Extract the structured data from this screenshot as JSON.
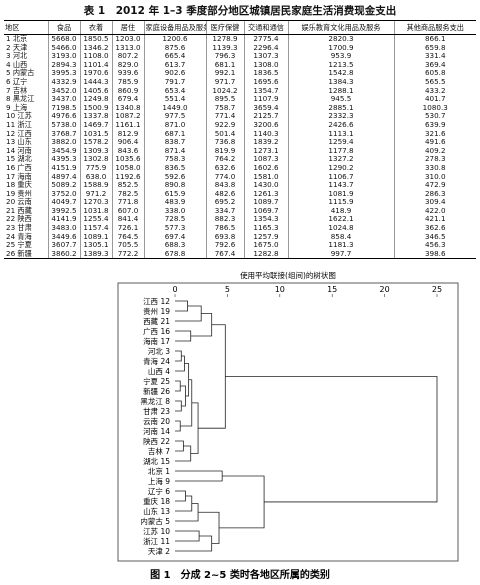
{
  "table": {
    "title": "表 1　2012 年 1–3 季度部分地区城镇居民家庭生活消费现金支出",
    "columns": [
      "地区",
      "食品",
      "衣着",
      "居住",
      "家庭设备用品及服务",
      "医疗保健",
      "交通和通信",
      "娱乐教育文化用品及服务",
      "其他商品服务支出"
    ],
    "rows": [
      [
        "1 北京",
        "5668.0",
        "1850.5",
        "1203.0",
        "1200.6",
        "1278.9",
        "2775.4",
        "2820.3",
        "866.1"
      ],
      [
        "2 天津",
        "5466.0",
        "1346.2",
        "1313.0",
        "875.6",
        "1139.3",
        "2296.4",
        "1700.9",
        "659.8"
      ],
      [
        "3 河北",
        "3193.0",
        "1108.0",
        "807.2",
        "665.4",
        "796.3",
        "1307.3",
        "953.9",
        "331.4"
      ],
      [
        "4 山西",
        "2894.3",
        "1101.4",
        "829.0",
        "613.7",
        "681.1",
        "1308.0",
        "1213.5",
        "369.4"
      ],
      [
        "5 内蒙古",
        "3995.3",
        "1970.6",
        "939.6",
        "902.6",
        "992.1",
        "1836.5",
        "1542.8",
        "605.8"
      ],
      [
        "6 辽宁",
        "4332.9",
        "1444.3",
        "785.9",
        "791.7",
        "971.7",
        "1695.6",
        "1384.3",
        "565.5"
      ],
      [
        "7 吉林",
        "3452.0",
        "1405.6",
        "860.9",
        "653.4",
        "1024.2",
        "1354.7",
        "1288.1",
        "433.2"
      ],
      [
        "8 黑龙江",
        "3437.0",
        "1249.8",
        "679.4",
        "551.4",
        "895.5",
        "1107.9",
        "945.5",
        "401.7"
      ],
      [
        "9 上海",
        "7198.5",
        "1500.9",
        "1340.8",
        "1449.0",
        "758.7",
        "3659.4",
        "2885.1",
        "1080.3"
      ],
      [
        "10 江苏",
        "4976.6",
        "1337.8",
        "1087.2",
        "977.5",
        "771.4",
        "2125.7",
        "2332.3",
        "530.7"
      ],
      [
        "11 浙江",
        "5738.0",
        "1469.7",
        "1161.1",
        "871.0",
        "922.9",
        "3200.6",
        "2426.6",
        "639.9"
      ],
      [
        "12 江西",
        "3768.7",
        "1031.5",
        "812.9",
        "687.1",
        "501.4",
        "1140.3",
        "1113.1",
        "321.6"
      ],
      [
        "13 山东",
        "3882.0",
        "1578.2",
        "906.4",
        "838.7",
        "736.8",
        "1839.2",
        "1259.4",
        "491.6"
      ],
      [
        "14 河南",
        "3454.9",
        "1309.3",
        "843.6",
        "871.4",
        "819.9",
        "1273.1",
        "1177.8",
        "409.2"
      ],
      [
        "15 湖北",
        "4395.3",
        "1302.8",
        "1035.6",
        "758.3",
        "764.2",
        "1087.3",
        "1327.2",
        "278.3"
      ],
      [
        "16 广西",
        "4151.9",
        "775.9",
        "1058.0",
        "836.5",
        "632.6",
        "1602.6",
        "1290.2",
        "330.8"
      ],
      [
        "17 海南",
        "4897.4",
        "638.0",
        "1192.6",
        "592.6",
        "774.0",
        "1581.0",
        "1106.7",
        "310.0"
      ],
      [
        "18 重庆",
        "5089.2",
        "1588.9",
        "852.5",
        "890.8",
        "843.8",
        "1430.0",
        "1143.7",
        "472.9"
      ],
      [
        "19 贵州",
        "3752.0",
        "971.2",
        "782.5",
        "615.9",
        "482.6",
        "1261.3",
        "1081.9",
        "286.3"
      ],
      [
        "20 云南",
        "4049.7",
        "1270.3",
        "771.8",
        "483.9",
        "695.2",
        "1089.7",
        "1115.9",
        "309.4"
      ],
      [
        "21 西藏",
        "3992.5",
        "1031.8",
        "607.0",
        "338.0",
        "334.7",
        "1069.7",
        "418.9",
        "422.0"
      ],
      [
        "22 陕西",
        "4141.9",
        "1255.4",
        "841.4",
        "728.5",
        "882.3",
        "1354.3",
        "1622.1",
        "421.1"
      ],
      [
        "23 甘肃",
        "3483.0",
        "1157.4",
        "726.1",
        "577.3",
        "786.5",
        "1165.3",
        "1024.8",
        "362.6"
      ],
      [
        "24 青海",
        "3449.6",
        "1089.1",
        "764.5",
        "697.4",
        "693.8",
        "1257.9",
        "858.4",
        "346.5"
      ],
      [
        "25 宁夏",
        "3607.7",
        "1305.1",
        "705.5",
        "688.3",
        "792.6",
        "1675.0",
        "1181.3",
        "456.3"
      ],
      [
        "26 新疆",
        "3860.2",
        "1389.3",
        "772.2",
        "678.8",
        "767.4",
        "1282.8",
        "997.7",
        "398.6"
      ]
    ]
  },
  "figure": {
    "title": "使用平均联接(组间)的树状图",
    "ticks": [
      0,
      5,
      10,
      15,
      20,
      25
    ],
    "leaves": [
      "江西 12",
      "贵州 19",
      "西藏 21",
      "广西 16",
      "海南 17",
      "河北 3",
      "青海 24",
      "山西 4",
      "宁夏 25",
      "新疆 26",
      "黑龙江 8",
      "甘肃 23",
      "云南 20",
      "河南 14",
      "陕西 22",
      "吉林 7",
      "湖北 15",
      "北京 1",
      "上海 9",
      "辽宁 6",
      "重庆 18",
      "山东 13",
      "内蒙古 5",
      "江苏 10",
      "浙江 11",
      "天津 2"
    ],
    "caption": "图 1　分成 2~5 类时各地区所属的类别"
  }
}
